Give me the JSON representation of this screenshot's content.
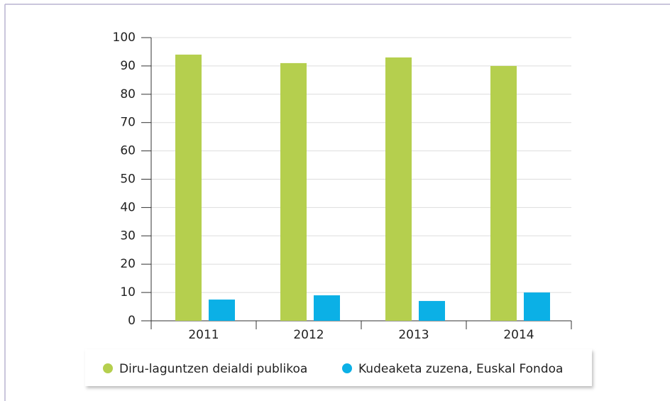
{
  "chart_data": {
    "type": "bar",
    "categories": [
      "2011",
      "2012",
      "2013",
      "2014"
    ],
    "series": [
      {
        "name": "Diru-laguntzen deialdi publikoa",
        "color": "#b5cf4e",
        "values": [
          94,
          91,
          93,
          90
        ]
      },
      {
        "name": "Kudeaketa zuzena, Euskal Fondoa",
        "color": "#0bb0e6",
        "values": [
          7.5,
          9,
          7,
          10
        ]
      }
    ],
    "ylim": [
      0,
      100
    ],
    "yticks": [
      0,
      10,
      20,
      30,
      40,
      50,
      60,
      70,
      80,
      90,
      100
    ],
    "grid": true,
    "legend": "bottom"
  }
}
